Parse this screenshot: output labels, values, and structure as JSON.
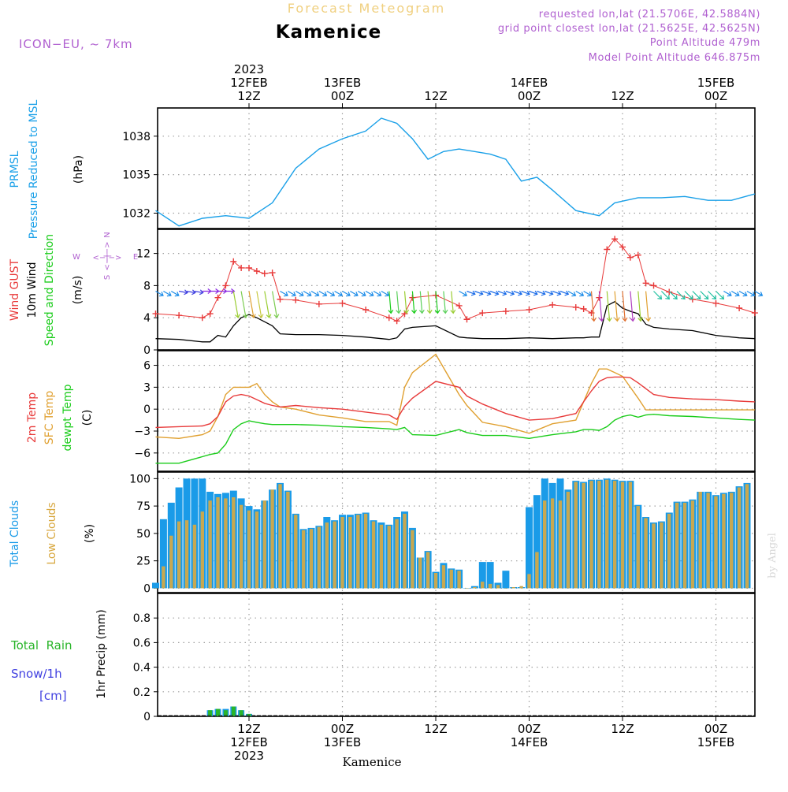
{
  "header": {
    "product": "Forecast Meteogram",
    "location": "Kamenice",
    "model": "ICON−EU, ~ 7km",
    "requested": "requested lon,lat (21.5706E, 42.5884N)",
    "gridpoint": "grid point closest lon,lat (21.5625E, 42.5625N)",
    "point_alt": "Point Altitude 479m",
    "model_alt": "Model Point Altitude 646.875m",
    "footer_location": "Kamenice",
    "watermark": "by Angel"
  },
  "colors": {
    "pressure": "#1aa0e8",
    "gust": "#e83a3a",
    "wind": "#000000",
    "temp2m": "#e83a3a",
    "sfc": "#e0a030",
    "dew": "#1acc1a",
    "total_clouds": "#1a9be8",
    "low_clouds": "#c8a850",
    "rain": "#2ab52a",
    "snow": "#4040e0",
    "magenta": "#b060d0"
  },
  "time_axis": {
    "top_ticks": [
      {
        "h": 12,
        "lines": [
          "2023",
          "12FEB",
          "12Z"
        ]
      },
      {
        "h": 24,
        "lines": [
          "13FEB",
          "00Z"
        ]
      },
      {
        "h": 36,
        "lines": [
          "12Z"
        ]
      },
      {
        "h": 48,
        "lines": [
          "14FEB",
          "00Z"
        ]
      },
      {
        "h": 60,
        "lines": [
          "12Z"
        ]
      },
      {
        "h": 72,
        "lines": [
          "15FEB",
          "00Z"
        ]
      }
    ],
    "bottom_ticks": [
      {
        "h": 12,
        "lines": [
          "12Z",
          "12FEB",
          "2023"
        ]
      },
      {
        "h": 24,
        "lines": [
          "00Z",
          "13FEB"
        ]
      },
      {
        "h": 36,
        "lines": [
          "12Z"
        ]
      },
      {
        "h": 48,
        "lines": [
          "00Z",
          "14FEB"
        ]
      },
      {
        "h": 60,
        "lines": [
          "12Z"
        ]
      },
      {
        "h": 72,
        "lines": [
          "00Z",
          "15FEB"
        ]
      }
    ]
  },
  "panels": {
    "pressure": {
      "labels": [
        "PRMSL",
        "Pressure Reduced to MSL"
      ],
      "unit": "(hPa)",
      "yticks": [
        "1032",
        "1035",
        "1038"
      ]
    },
    "wind": {
      "labels": [
        "Wind GUST",
        "10m Wind",
        "Speed and Direction"
      ],
      "unit": "(m/s)",
      "yticks": [
        "0",
        "4",
        "8",
        "12"
      ],
      "compass": {
        "n": "N",
        "s": "S",
        "w": "W",
        "e": "E"
      }
    },
    "temp": {
      "labels": [
        "2m Temp",
        "SFC Temp",
        "dewpt Temp"
      ],
      "unit": "(C)",
      "yticks": [
        "−6",
        "−3",
        "0",
        "3",
        "6"
      ]
    },
    "clouds": {
      "labels": [
        "Total Clouds",
        "Low Clouds"
      ],
      "unit": "(%)",
      "yticks": [
        "0",
        "25",
        "50",
        "75",
        "100"
      ]
    },
    "precip": {
      "labels": [
        "Total  Rain",
        "Snow/1h",
        "[cm]"
      ],
      "unit": "1hr Precip (mm)",
      "yticks": [
        "0",
        "0.2",
        "0.4",
        "0.6",
        "0.8"
      ]
    }
  },
  "chart_data": [
    {
      "type": "line",
      "title": "PRMSL Pressure Reduced to MSL",
      "ylabel": "hPa",
      "ylim": [
        1030.8,
        1040.2
      ],
      "x": [
        0,
        3,
        6,
        9,
        12,
        15,
        18,
        21,
        24,
        27,
        29,
        31,
        33,
        35,
        37,
        39,
        41,
        43,
        45,
        47,
        49,
        51,
        54,
        57,
        59,
        62,
        65,
        68,
        71,
        74,
        77
      ],
      "series": [
        {
          "name": "PRMSL",
          "values": [
            1032.2,
            1031.0,
            1031.6,
            1031.8,
            1031.6,
            1032.8,
            1035.5,
            1037.0,
            1037.8,
            1038.4,
            1039.4,
            1039.0,
            1037.8,
            1036.2,
            1036.8,
            1037.0,
            1036.8,
            1036.6,
            1036.2,
            1034.5,
            1034.8,
            1033.8,
            1032.2,
            1031.8,
            1032.8,
            1033.2,
            1033.2,
            1033.3,
            1033.0,
            1033.0,
            1033.5
          ]
        }
      ]
    },
    {
      "type": "line",
      "title": "Wind GUST / 10m Wind Speed and Direction",
      "ylabel": "m/s",
      "ylim": [
        0,
        15
      ],
      "x": [
        0,
        3,
        6,
        7,
        8,
        9,
        10,
        11,
        12,
        13,
        14,
        15,
        16,
        18,
        21,
        24,
        27,
        30,
        31,
        32,
        33,
        36,
        39,
        40,
        42,
        45,
        48,
        51,
        54,
        55,
        56,
        57,
        58,
        59,
        60,
        61,
        62,
        63,
        64,
        66,
        69,
        72,
        75,
        77
      ],
      "series": [
        {
          "name": "Wind GUST",
          "values": [
            4.5,
            4.3,
            4.0,
            4.5,
            6.5,
            8.0,
            11.0,
            10.2,
            10.2,
            9.8,
            9.5,
            9.6,
            6.3,
            6.2,
            5.7,
            5.8,
            5.0,
            4.0,
            3.6,
            4.5,
            6.5,
            6.8,
            5.5,
            3.8,
            4.6,
            4.8,
            5.0,
            5.6,
            5.3,
            5.1,
            4.6,
            6.5,
            12.5,
            13.8,
            12.8,
            11.5,
            11.8,
            8.3,
            8.0,
            7.2,
            6.3,
            5.8,
            5.2,
            4.6
          ]
        },
        {
          "name": "10m Wind",
          "values": [
            1.4,
            1.3,
            1.0,
            1.0,
            1.8,
            1.6,
            3.0,
            4.0,
            4.4,
            4.0,
            3.5,
            3.0,
            2.0,
            1.9,
            1.9,
            1.8,
            1.6,
            1.3,
            1.5,
            2.6,
            2.8,
            3.0,
            1.6,
            1.5,
            1.4,
            1.4,
            1.5,
            1.4,
            1.5,
            1.5,
            1.6,
            1.6,
            5.5,
            6.0,
            5.2,
            4.8,
            4.5,
            3.2,
            2.8,
            2.6,
            2.4,
            1.8,
            1.5,
            1.4
          ]
        }
      ]
    },
    {
      "type": "line",
      "title": "2m Temp / SFC Temp / dewpt Temp",
      "ylabel": "C",
      "ylim": [
        -8.5,
        8.0
      ],
      "x": [
        0,
        3,
        6,
        7,
        8,
        9,
        10,
        11,
        12,
        13,
        14,
        15,
        16,
        18,
        21,
        24,
        27,
        30,
        31,
        32,
        33,
        36,
        39,
        40,
        42,
        45,
        48,
        51,
        54,
        55,
        56,
        57,
        58,
        59,
        60,
        61,
        62,
        63,
        64,
        66,
        69,
        72,
        75,
        77
      ],
      "series": [
        {
          "name": "2m Temp",
          "values": [
            -2.5,
            -2.4,
            -2.3,
            -2.0,
            -1.0,
            1.0,
            1.8,
            2.0,
            1.8,
            1.3,
            0.8,
            0.5,
            0.3,
            0.5,
            0.2,
            0.0,
            -0.4,
            -0.8,
            -1.4,
            0.4,
            1.5,
            3.8,
            3.0,
            1.8,
            0.7,
            -0.6,
            -1.5,
            -1.3,
            -0.6,
            1.0,
            2.5,
            3.8,
            4.3,
            4.4,
            4.4,
            4.3,
            3.6,
            2.8,
            2.0,
            1.6,
            1.4,
            1.3,
            1.1,
            1.0
          ]
        },
        {
          "name": "SFC Temp",
          "values": [
            -3.8,
            -4.0,
            -3.5,
            -3.0,
            -1.0,
            2.0,
            3.0,
            3.0,
            3.0,
            3.5,
            2.0,
            1.0,
            0.3,
            0.0,
            -0.8,
            -1.2,
            -1.7,
            -1.7,
            -2.2,
            3.0,
            5.0,
            7.5,
            2.0,
            0.5,
            -1.8,
            -2.4,
            -3.3,
            -2.0,
            -1.5,
            1.0,
            3.5,
            5.5,
            5.5,
            5.0,
            4.5,
            3.0,
            1.5,
            -0.1,
            -0.1,
            -0.1,
            -0.1,
            -0.1,
            -0.1,
            -0.1
          ]
        },
        {
          "name": "dewpt Temp",
          "values": [
            -7.4,
            -7.4,
            -6.5,
            -6.2,
            -6.0,
            -4.8,
            -2.8,
            -2.0,
            -1.6,
            -1.8,
            -2.0,
            -2.1,
            -2.1,
            -2.1,
            -2.2,
            -2.4,
            -2.5,
            -2.7,
            -2.8,
            -2.5,
            -3.5,
            -3.6,
            -2.8,
            -3.2,
            -3.6,
            -3.6,
            -4.0,
            -3.5,
            -3.1,
            -2.8,
            -2.8,
            -2.9,
            -2.4,
            -1.5,
            -1.0,
            -0.8,
            -1.1,
            -0.8,
            -0.7,
            -0.9,
            -1.0,
            -1.2,
            -1.4,
            -1.5
          ]
        }
      ]
    },
    {
      "type": "bar",
      "title": "Total Clouds / Low Clouds",
      "ylabel": "%",
      "ylim": [
        -4,
        106
      ],
      "x": [
        0,
        1,
        2,
        3,
        4,
        5,
        6,
        7,
        8,
        9,
        10,
        11,
        12,
        13,
        14,
        15,
        16,
        17,
        18,
        19,
        20,
        21,
        22,
        23,
        24,
        25,
        26,
        27,
        28,
        29,
        30,
        31,
        32,
        33,
        34,
        35,
        36,
        37,
        38,
        39,
        40,
        41,
        42,
        43,
        44,
        45,
        46,
        47,
        48,
        49,
        50,
        51,
        52,
        53,
        54,
        55,
        56,
        57,
        58,
        59,
        60,
        61,
        62,
        63,
        64,
        65,
        66,
        67,
        68,
        69,
        70,
        71,
        72,
        73,
        74,
        75,
        76
      ],
      "series": [
        {
          "name": "Total Clouds",
          "values": [
            5,
            63,
            78,
            92,
            100,
            100,
            100,
            88,
            86,
            87,
            89,
            82,
            75,
            72,
            80,
            90,
            96,
            89,
            68,
            54,
            55,
            57,
            65,
            62,
            67,
            67,
            68,
            69,
            62,
            60,
            58,
            65,
            70,
            55,
            28,
            34,
            15,
            23,
            18,
            17,
            0,
            2,
            24,
            24,
            5,
            16,
            1,
            1,
            74,
            85,
            100,
            96,
            100,
            90,
            98,
            97,
            99,
            99,
            100,
            99,
            98,
            98,
            76,
            65,
            60,
            61,
            69,
            79,
            79,
            81,
            88,
            88,
            85,
            87,
            88,
            93,
            96
          ]
        },
        {
          "name": "Low Clouds",
          "values": [
            0,
            20,
            48,
            61,
            62,
            58,
            70,
            80,
            83,
            82,
            83,
            76,
            71,
            70,
            80,
            90,
            95,
            88,
            67,
            53,
            54,
            56,
            60,
            61,
            65,
            65,
            67,
            68,
            61,
            58,
            57,
            63,
            68,
            53,
            28,
            33,
            14,
            21,
            17,
            16,
            0,
            1,
            6,
            4,
            3,
            0,
            1,
            2,
            13,
            33,
            80,
            82,
            80,
            88,
            97,
            96,
            98,
            98,
            99,
            98,
            97,
            97,
            75,
            64,
            59,
            60,
            68,
            78,
            78,
            80,
            88,
            87,
            84,
            86,
            87,
            92,
            95
          ]
        }
      ]
    },
    {
      "type": "bar",
      "title": "1hr Precip",
      "ylabel": "1hr Precip (mm)",
      "ylim": [
        0,
        1.0
      ],
      "x": [
        7,
        8,
        9,
        10,
        11,
        12
      ],
      "series": [
        {
          "name": "Total",
          "values": [
            0.05,
            0.06,
            0.06,
            0.08,
            0.05,
            0.02
          ]
        },
        {
          "name": "Rain",
          "values": [
            0.05,
            0.06,
            0.05,
            0.08,
            0.05,
            0.02
          ]
        }
      ]
    }
  ]
}
